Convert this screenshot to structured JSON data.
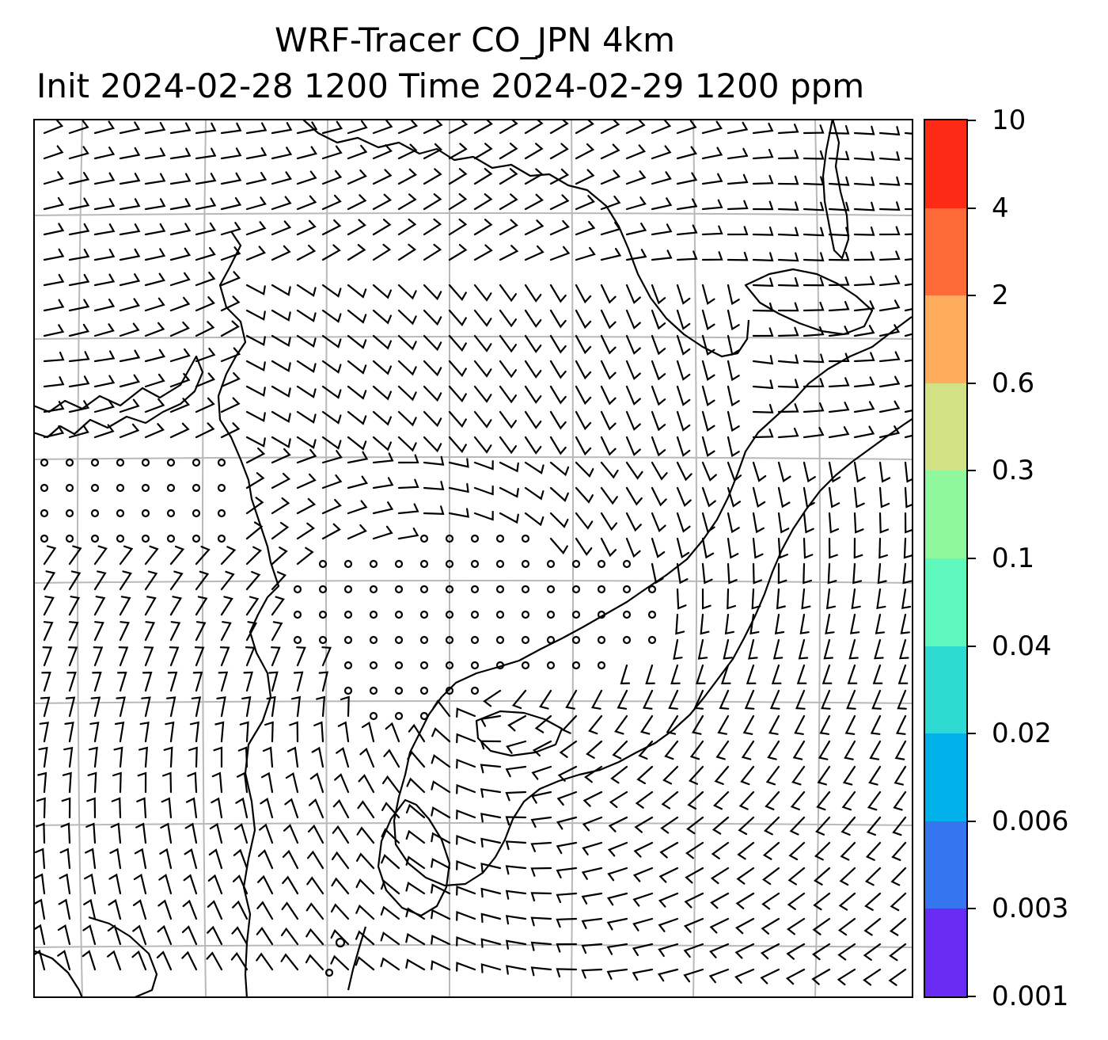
{
  "title": {
    "line1": "WRF-Tracer CO_JPN 4km",
    "line2": "Init 2024-02-28 1200 Time 2024-02-29 1200 ppm"
  },
  "map": {
    "features": [
      "coastlines",
      "wind-barbs",
      "calm-wind-circles",
      "lat-lon-gridlines"
    ],
    "gridline_color": "#b8b8b8",
    "barb_color": "#000000"
  },
  "colorbar": {
    "levels": [
      "0.001",
      "0.003",
      "0.006",
      "0.02",
      "0.04",
      "0.1",
      "0.3",
      "0.6",
      "2",
      "4",
      "10"
    ],
    "colors": [
      "#6a2bf5",
      "#3675f0",
      "#00b1ea",
      "#2ddbd3",
      "#5ef7bc",
      "#8ff79c",
      "#d2e183",
      "#ffac5e",
      "#ff6b38",
      "#ff2a16"
    ]
  }
}
